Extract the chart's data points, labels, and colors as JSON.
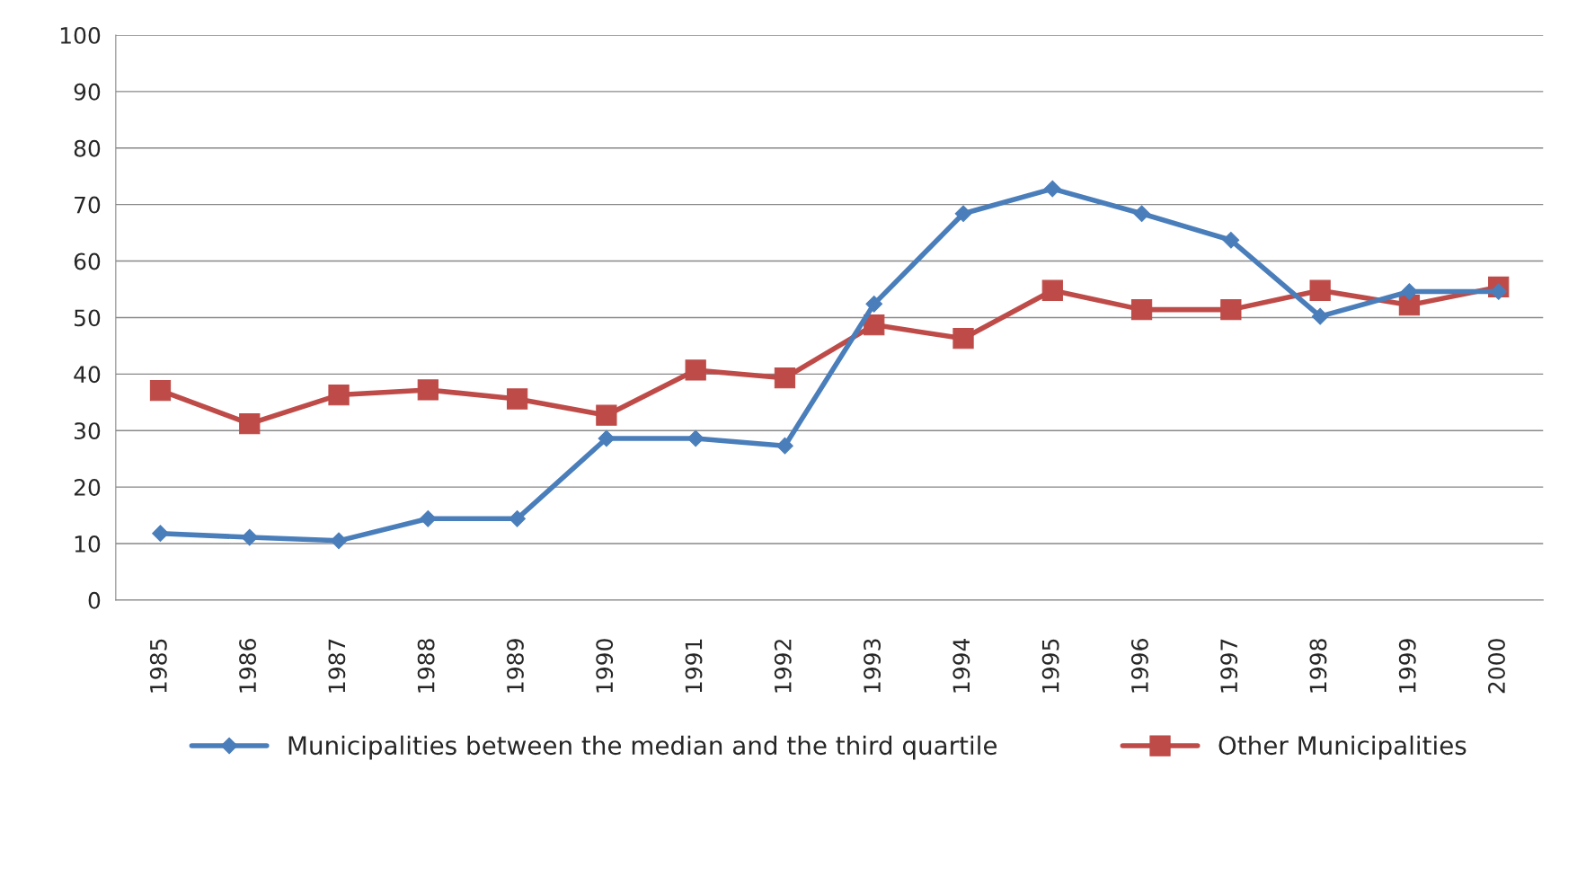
{
  "chart_data": {
    "type": "line",
    "categories": [
      "1985",
      "1986",
      "1987",
      "1988",
      "1989",
      "1990",
      "1991",
      "1992",
      "1993",
      "1994",
      "1995",
      "1996",
      "1997",
      "1998",
      "1999",
      "2000"
    ],
    "series": [
      {
        "name": "Municipalities between the median and the third quartile",
        "color": "#4a7ebb",
        "marker": "diamond",
        "values": [
          11.8,
          11.1,
          10.5,
          14.4,
          14.4,
          28.6,
          28.6,
          27.3,
          52.4,
          68.4,
          72.8,
          68.4,
          63.7,
          50.2,
          54.6,
          54.6
        ]
      },
      {
        "name": "Other Municipalities",
        "color": "#be4b48",
        "marker": "square",
        "values": [
          37.1,
          31.2,
          36.3,
          37.2,
          35.6,
          32.7,
          40.7,
          39.3,
          48.7,
          46.3,
          54.8,
          51.4,
          51.4,
          54.8,
          52.2,
          55.4
        ]
      }
    ],
    "ylim": [
      0,
      100
    ],
    "yticks": [
      0,
      10,
      20,
      30,
      40,
      50,
      60,
      70,
      80,
      90,
      100
    ],
    "grid": "y",
    "legend": "bottom",
    "line_style": "solid"
  }
}
